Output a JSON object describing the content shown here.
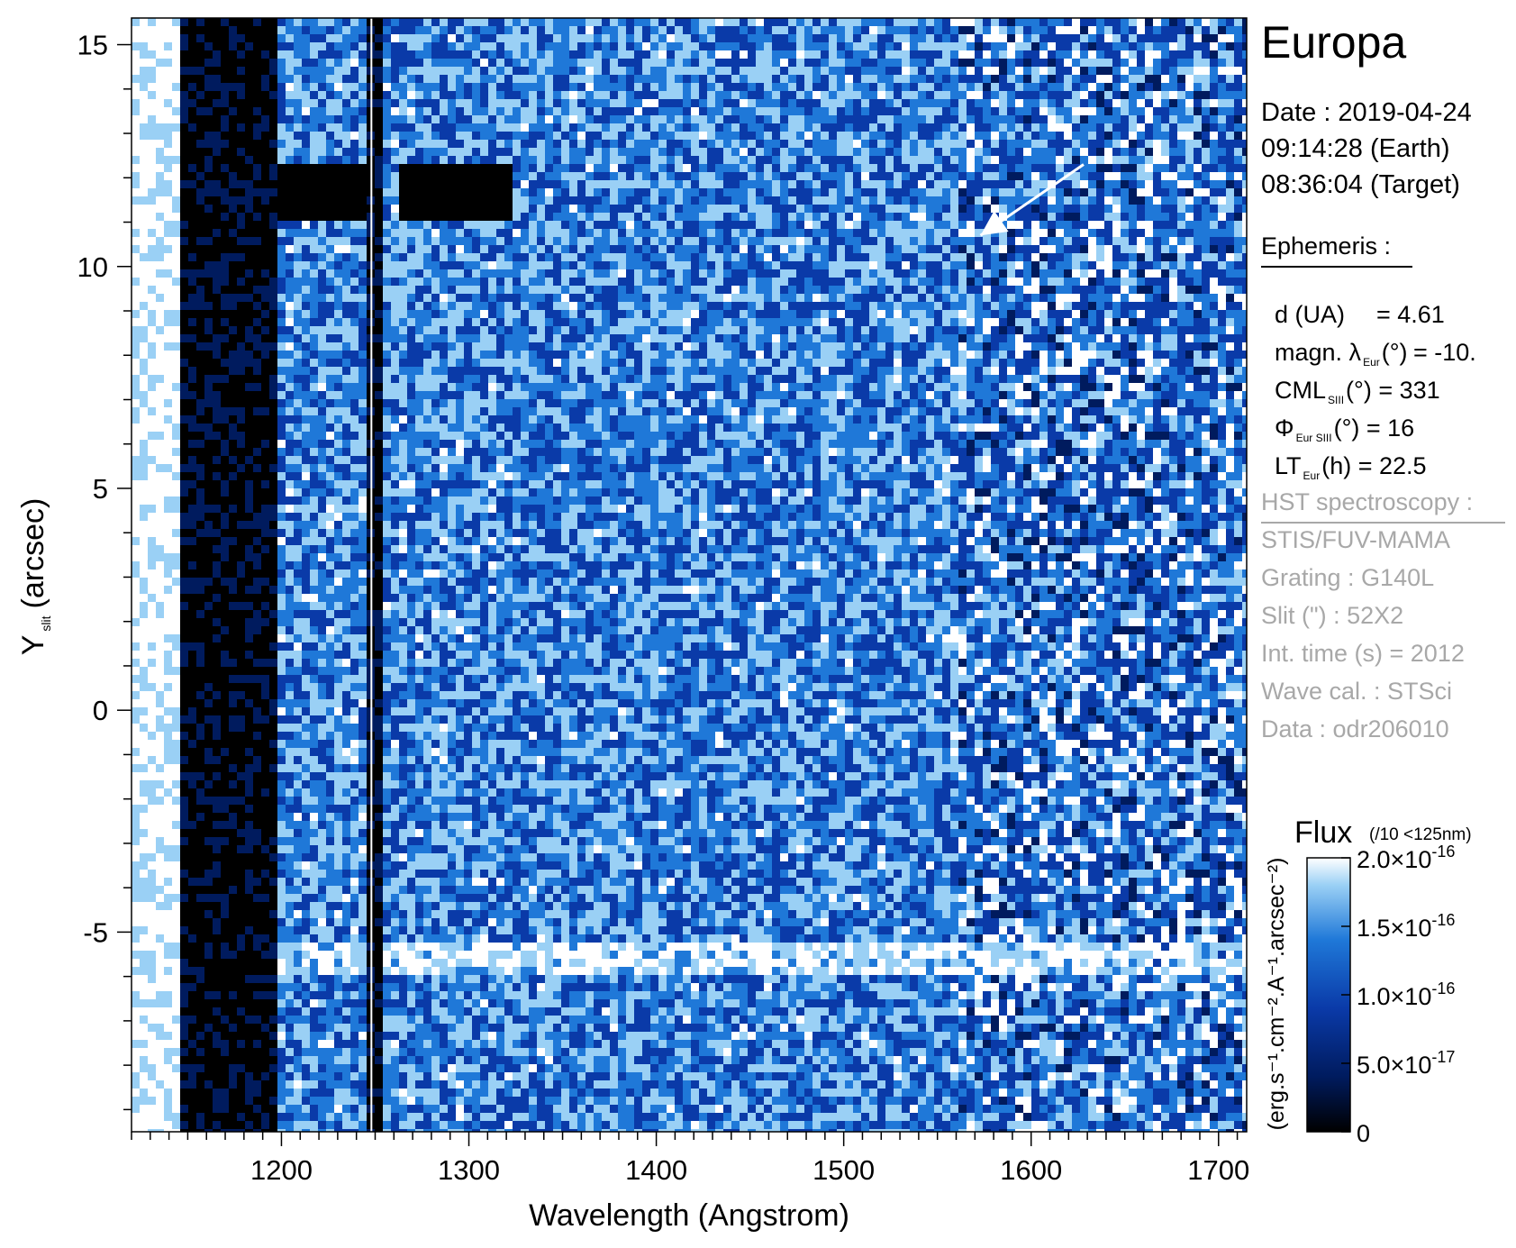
{
  "chart_data": {
    "type": "heatmap",
    "title": "",
    "xlabel": "Wavelength (Angstrom)",
    "ylabel_main": "Y",
    "ylabel_sub": "slit",
    "ylabel_unit": "(arcsec)",
    "xlim": [
      1120,
      1715
    ],
    "ylim": [
      -9.5,
      15.6
    ],
    "x_ticks": [
      1200,
      1300,
      1400,
      1500,
      1600,
      1700
    ],
    "y_ticks": [
      -5,
      0,
      5,
      10,
      15
    ],
    "x_minor_step": 10,
    "y_minor_step": 1,
    "tick_labels_x": [
      "1200",
      "1300",
      "1400",
      "1500",
      "1600",
      "1700"
    ],
    "tick_labels_y": [
      "-5",
      "0",
      "5",
      "10",
      "15"
    ],
    "colormap": [
      "#000000",
      "#001b5e",
      "#0a3aa8",
      "#1f78d8",
      "#9ad0f5",
      "#ffffff"
    ],
    "colorbar": {
      "title": "Flux",
      "note": "(/10 <125nm)",
      "unit_label": "(erg.s⁻¹.cm⁻².A⁻¹.arcsec⁻²)",
      "range": [
        0,
        2e-16
      ],
      "ticks": [
        0,
        5e-17,
        1e-16,
        1.5e-16,
        2e-16
      ],
      "tick_labels": [
        "0",
        "5.0×10-17",
        "1.0×10-16",
        "1.5×10-16",
        "2.0×10-16"
      ]
    },
    "features": {
      "saturated_band_x": [
        1120,
        1145
      ],
      "lyman_alpha_band_x": [
        1195,
        1242
      ],
      "separator_x": 1248,
      "dark_gaps_x": [
        [
          1145,
          1195
        ],
        [
          1242,
          1254
        ]
      ],
      "bright_row_y": -5.5,
      "dark_blob_y": 11.8,
      "arrow_from": [
        1628,
        12.3
      ],
      "arrow_to": [
        1573,
        10.7
      ]
    }
  },
  "info": {
    "target": "Europa",
    "date_line": "Date : 2019-04-24",
    "time_earth": "09:14:28 (Earth)",
    "time_target": "08:36:04 (Target)",
    "ephemeris_heading": "Ephemeris :",
    "eph": {
      "d_label": "d (UA)",
      "d_value": "= 4.61",
      "magn_label": "magn. λ",
      "magn_sub": "Eur",
      "magn_unit": "(°)",
      "magn_value": "= -10.",
      "cml_label": "CML",
      "cml_sub": "SIII",
      "cml_rest": "(°) = 331",
      "phi_label": "Φ",
      "phi_sub": "Eur SIII",
      "phi_rest": "(°) = 16",
      "lt_label": "LT",
      "lt_sub": "Eur",
      "lt_rest": "(h) = 22.5"
    },
    "hst_heading": "HST spectroscopy :",
    "hst_lines": [
      "STIS/FUV-MAMA",
      "Grating : G140L",
      "Slit (\") : 52X2",
      "Int. time (s) = 2012",
      "Wave cal. : STSci",
      "Data : odr206010"
    ]
  }
}
